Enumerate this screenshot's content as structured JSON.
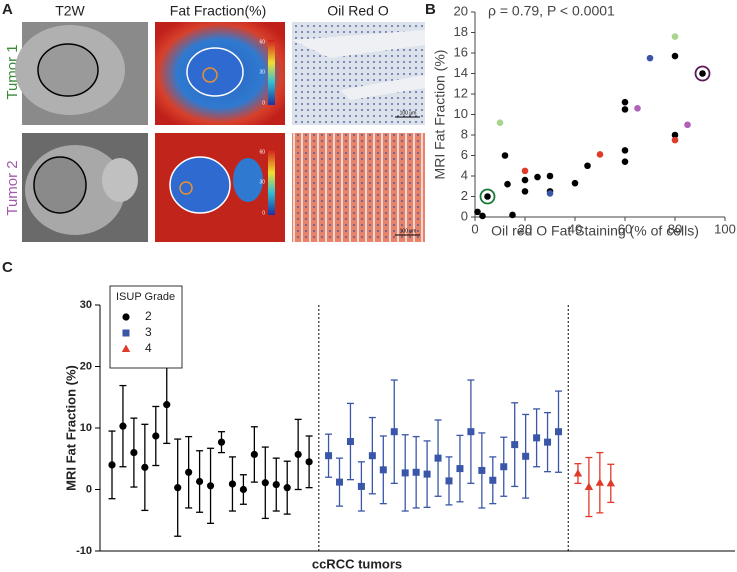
{
  "panel_a": {
    "label": "A",
    "columns": [
      "T2W",
      "Fat Fraction(%)",
      "Oil Red O"
    ],
    "rows": [
      "Tumor 1",
      "Tumor 2"
    ],
    "colorbar_ticks": [
      "60",
      "30",
      "0"
    ],
    "scale_bar": "100 μm"
  },
  "chart_data": [
    {
      "type": "scatter",
      "panel_label": "B",
      "annotation": "ρ = 0.79, P < 0.0001",
      "x_label": "Oil red O Fat Staining (% of cells)",
      "y_label": "MRI Fat Fraction (%)",
      "xlim": [
        0,
        100
      ],
      "xticks": [
        0,
        20,
        40,
        60,
        80,
        100
      ],
      "ylim": [
        0,
        20
      ],
      "yticks": [
        0,
        2,
        4,
        6,
        8,
        10,
        12,
        14,
        16,
        18,
        20
      ],
      "series": [
        {
          "color": "#000000",
          "x": [
            1,
            3,
            12,
            13,
            15,
            20,
            20,
            25,
            30,
            30,
            40,
            45,
            60,
            60,
            60,
            60,
            80,
            80
          ],
          "values": [
            0.5,
            0.1,
            6,
            3.2,
            0.2,
            3.6,
            2.5,
            3.9,
            4,
            2.5,
            3.3,
            5,
            11.2,
            10.5,
            6.5,
            5.4,
            15.7,
            8
          ]
        },
        {
          "color": "#a8d48c",
          "x": [
            10,
            80
          ],
          "values": [
            9.2,
            17.6
          ]
        },
        {
          "color": "#3a56a8",
          "x": [
            30,
            70
          ],
          "values": [
            2.3,
            15.5
          ]
        },
        {
          "color": "#e03a2a",
          "x": [
            20,
            50,
            80
          ],
          "values": [
            4.5,
            6.1,
            7.5
          ]
        },
        {
          "color": "#b060b8",
          "x": [
            65,
            85
          ],
          "values": [
            10.6,
            9
          ]
        },
        {
          "color": "#000000",
          "ring": "#1a7a3a",
          "x": [
            5
          ],
          "values": [
            2
          ]
        },
        {
          "color": "#000000",
          "ring": "#5a1a5a",
          "x": [
            91
          ],
          "values": [
            14
          ]
        }
      ]
    },
    {
      "type": "errorbar",
      "panel_label": "C",
      "x_label": "ccRCC tumors",
      "y_label": "MRI Fat Fraction (%)",
      "legend_title": "ISUP Grade",
      "ylim": [
        -10,
        30
      ],
      "yticks": [
        -10,
        0,
        10,
        20,
        30
      ],
      "series": [
        {
          "name": "2",
          "color": "#000000",
          "marker": "circle",
          "values": [
            4,
            10.3,
            6,
            3.6,
            8.7,
            13.8,
            0.3,
            2.8,
            1.3,
            0.6,
            7.7,
            0.9,
            0,
            5.7,
            1.1,
            0.8,
            0.3,
            5.7,
            4.5
          ],
          "errors": [
            5.5,
            6.6,
            5.6,
            7,
            4.8,
            6.3,
            7.9,
            5.8,
            5,
            6.1,
            1.7,
            4.4,
            2.4,
            4.5,
            5.8,
            4.3,
            4.3,
            5.7,
            4.2
          ]
        },
        {
          "name": "3",
          "color": "#3a56a8",
          "marker": "square",
          "values": [
            5.5,
            1.2,
            7.8,
            0.5,
            5.5,
            3.2,
            9.4,
            2.7,
            2.8,
            2.5,
            5.1,
            1.4,
            3.4,
            9.4,
            3.1,
            1.5,
            3.7,
            7.3,
            5.4,
            8.4,
            7.7,
            9.4
          ],
          "errors": [
            3.5,
            3.9,
            6.2,
            4,
            6.2,
            5.5,
            8.4,
            6.2,
            5.8,
            5.4,
            6.2,
            3.9,
            5.4,
            8.4,
            6.1,
            3.8,
            4.8,
            6.8,
            6.8,
            4.7,
            4.8,
            6.6
          ]
        },
        {
          "name": "4",
          "color": "#e03a2a",
          "marker": "triangle",
          "values": [
            2.6,
            0.4,
            1.1,
            1
          ],
          "errors": [
            1.6,
            4.8,
            4.9,
            3.1
          ]
        }
      ]
    }
  ]
}
